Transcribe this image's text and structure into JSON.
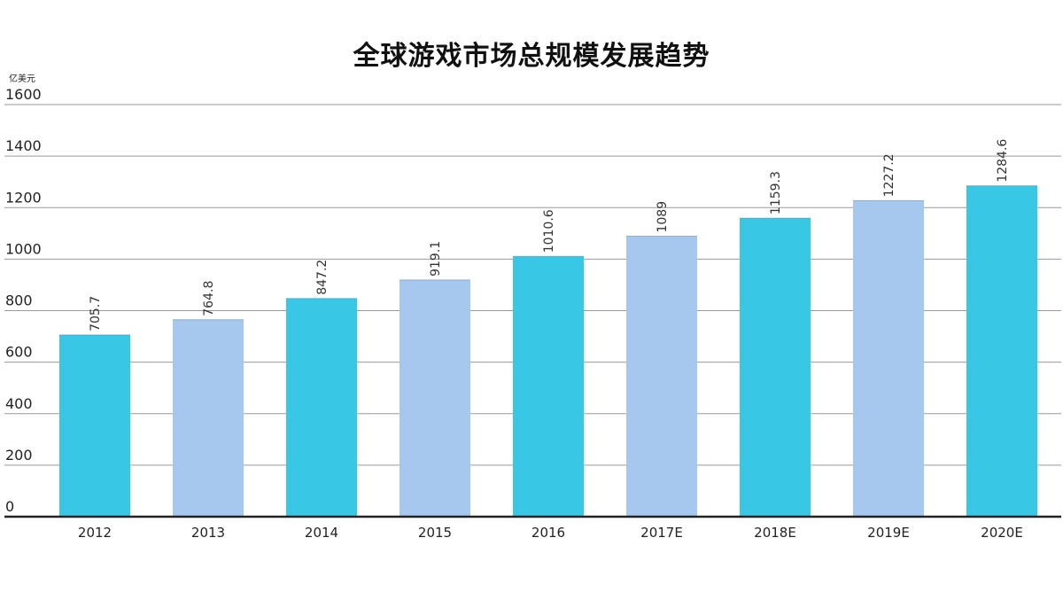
{
  "chart_data": {
    "type": "bar",
    "title": "全球游戏市场总规模发展趋势",
    "unit": "亿美元",
    "categories": [
      "2012",
      "2013",
      "2014",
      "2015",
      "2016",
      "2017E",
      "2018E",
      "2019E",
      "2020E"
    ],
    "values": [
      705.7,
      764.8,
      847.2,
      919.1,
      1010.6,
      1089,
      1159.3,
      1227.2,
      1284.6
    ],
    "value_labels": [
      "705.7",
      "764.8",
      "847.2",
      "919.1",
      "1010.6",
      "1089",
      "1159.3",
      "1227.2",
      "1284.6"
    ],
    "bar_colors": [
      "#38c8e6",
      "#a6c8ee",
      "#38c8e6",
      "#a6c8ee",
      "#38c8e6",
      "#a6c8ee",
      "#38c8e6",
      "#a6c8ee",
      "#38c8e6"
    ],
    "ylim": [
      0,
      1600
    ],
    "yticks": [
      0,
      200,
      400,
      600,
      800,
      1000,
      1200,
      1400,
      1600
    ],
    "grid": true,
    "legend": "none"
  }
}
